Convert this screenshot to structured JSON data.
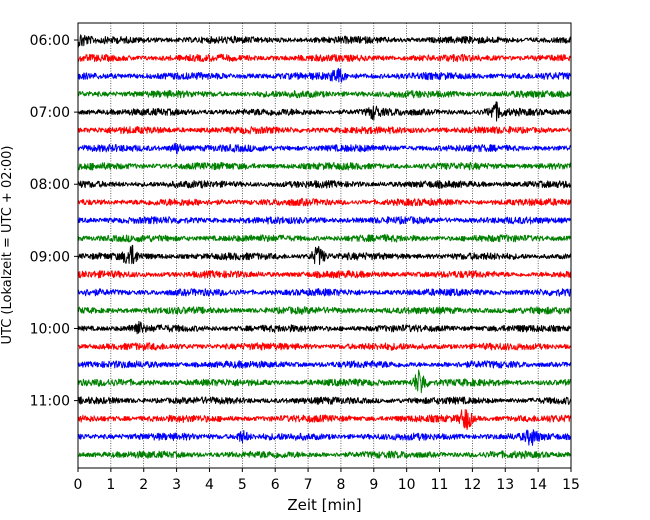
{
  "chart_data": {
    "type": "line",
    "title": "",
    "xlabel": "Zeit  [min]",
    "ylabel": "UTC (Lokalzeit = UTC + 02:00)",
    "xlim": [
      0,
      15
    ],
    "x_ticks": [
      "0",
      "1",
      "2",
      "3",
      "4",
      "5",
      "6",
      "7",
      "8",
      "9",
      "10",
      "11",
      "12",
      "13",
      "14",
      "15"
    ],
    "y_ticks": [
      {
        "row": 0,
        "label": "06:00"
      },
      {
        "row": 4,
        "label": "07:00"
      },
      {
        "row": 8,
        "label": "08:00"
      },
      {
        "row": 12,
        "label": "09:00"
      },
      {
        "row": 16,
        "label": "10:00"
      },
      {
        "row": 20,
        "label": "11:00"
      }
    ],
    "row_minutes": 15,
    "rows": 24,
    "grid": "vertical-dotted",
    "legend": "none",
    "trace_colors": [
      "#000000",
      "#ff0000",
      "#0000ff",
      "#008000"
    ],
    "events": [
      {
        "row": 0,
        "minute": 0.1,
        "amp": 1.6
      },
      {
        "row": 2,
        "minute": 7.9,
        "amp": 1.8
      },
      {
        "row": 4,
        "minute": 9.0,
        "amp": 1.5
      },
      {
        "row": 4,
        "minute": 12.7,
        "amp": 2.2
      },
      {
        "row": 6,
        "minute": 3.0,
        "amp": 1.3
      },
      {
        "row": 12,
        "minute": 1.6,
        "amp": 2.8
      },
      {
        "row": 12,
        "minute": 7.3,
        "amp": 2.6
      },
      {
        "row": 16,
        "minute": 1.8,
        "amp": 1.6
      },
      {
        "row": 19,
        "minute": 10.4,
        "amp": 3.5
      },
      {
        "row": 21,
        "minute": 11.8,
        "amp": 3.0
      },
      {
        "row": 22,
        "minute": 13.8,
        "amp": 1.9
      },
      {
        "row": 22,
        "minute": 5.0,
        "amp": 1.4
      }
    ]
  }
}
